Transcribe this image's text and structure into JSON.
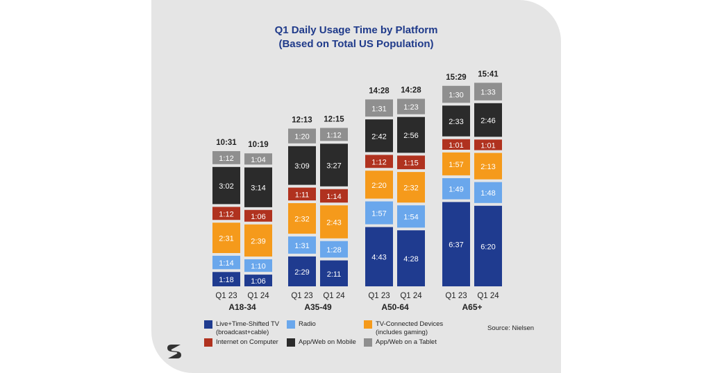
{
  "title_line1": "Q1 Daily Usage Time by Platform",
  "title_line2": "(Based on Total US Population)",
  "source": "Source: Nielsen",
  "chart_data": {
    "type": "bar",
    "stacked": true,
    "title": "Q1 Daily Usage Time by Platform (Based on Total US Population)",
    "groups": [
      {
        "name": "A18-34",
        "bars": [
          {
            "label": "Q1 23",
            "total": "10:31",
            "values": [
              "1:18",
              "1:14",
              "2:31",
              "1:12",
              "3:02",
              "1:12"
            ]
          },
          {
            "label": "Q1 24",
            "total": "10:19",
            "values": [
              "1:06",
              "1:10",
              "2:39",
              "1:06",
              "3:14",
              "1:04"
            ]
          }
        ]
      },
      {
        "name": "A35-49",
        "bars": [
          {
            "label": "Q1 23",
            "total": "12:13",
            "values": [
              "2:29",
              "1:31",
              "2:32",
              "1:11",
              "3:09",
              "1:20"
            ]
          },
          {
            "label": "Q1 24",
            "total": "12:15",
            "values": [
              "2:11",
              "1:28",
              "2:43",
              "1:14",
              "3:27",
              "1:12"
            ]
          }
        ]
      },
      {
        "name": "A50-64",
        "bars": [
          {
            "label": "Q1 23",
            "total": "14:28",
            "values": [
              "4:43",
              "1:57",
              "2:20",
              "1:12",
              "2:42",
              "1:31"
            ]
          },
          {
            "label": "Q1 24",
            "total": "14:28",
            "values": [
              "4:28",
              "1:54",
              "2:32",
              "1:15",
              "2:56",
              "1:23"
            ]
          }
        ]
      },
      {
        "name": "A65+",
        "bars": [
          {
            "label": "Q1 23",
            "total": "15:29",
            "values": [
              "6:37",
              "1:49",
              "1:57",
              "1:01",
              "2:33",
              "1:30"
            ]
          },
          {
            "label": "Q1 24",
            "total": "15:41",
            "values": [
              "6:20",
              "1:48",
              "2:13",
              "1:01",
              "2:46",
              "1:33"
            ]
          }
        ]
      }
    ],
    "series": [
      {
        "name": "Live+Time-Shifted TV (broadcast+cable)",
        "color": "#1f3b8f"
      },
      {
        "name": "Radio",
        "color": "#6aa7ec"
      },
      {
        "name": "TV-Connected Devices (includes gaming)",
        "color": "#f59a1b"
      },
      {
        "name": "Internet on Computer",
        "color": "#b0321f"
      },
      {
        "name": "App/Web on Mobile",
        "color": "#2b2b2b"
      },
      {
        "name": "App/Web on a Tablet",
        "color": "#8f8f8f"
      }
    ]
  },
  "legend": [
    {
      "line1": "Live+Time-Shifted TV",
      "line2": "(broadcast+cable)",
      "color": "#1f3b8f"
    },
    {
      "line1": "Radio",
      "line2": "",
      "color": "#6aa7ec"
    },
    {
      "line1": "TV-Connected Devices",
      "line2": "(includes gaming)",
      "color": "#f59a1b"
    },
    {
      "line1": "Internet on Computer",
      "line2": "",
      "color": "#b0321f"
    },
    {
      "line1": "App/Web on Mobile",
      "line2": "",
      "color": "#2b2b2b"
    },
    {
      "line1": "App/Web on a Tablet",
      "line2": "",
      "color": "#8f8f8f"
    }
  ],
  "logo_icon": "s-logo-icon"
}
